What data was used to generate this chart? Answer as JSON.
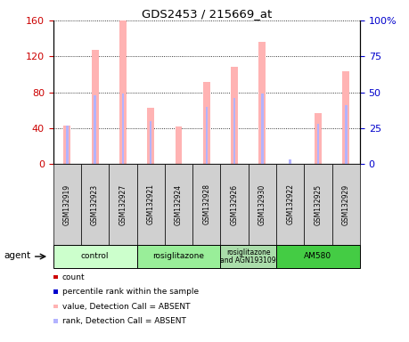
{
  "title": "GDS2453 / 215669_at",
  "samples": [
    "GSM132919",
    "GSM132923",
    "GSM132927",
    "GSM132921",
    "GSM132924",
    "GSM132928",
    "GSM132926",
    "GSM132930",
    "GSM132922",
    "GSM132925",
    "GSM132929"
  ],
  "pink_bars": [
    43,
    127,
    160,
    63,
    42,
    92,
    108,
    136,
    0,
    57,
    103
  ],
  "blue_bars": [
    27,
    48,
    49,
    30,
    0,
    40,
    46,
    49,
    3,
    28,
    41
  ],
  "left_ylim": [
    0,
    160
  ],
  "right_ylim": [
    0,
    100
  ],
  "left_yticks": [
    0,
    40,
    80,
    120,
    160
  ],
  "right_yticks": [
    0,
    25,
    50,
    75,
    100
  ],
  "left_yticklabels": [
    "0",
    "40",
    "80",
    "120",
    "160"
  ],
  "right_yticklabels": [
    "0",
    "25",
    "50",
    "75",
    "100%"
  ],
  "left_tick_color": "#cc0000",
  "right_tick_color": "#0000cc",
  "pink_color": "#ffb3b3",
  "blue_color": "#b3b3ff",
  "pink_bar_width": 0.25,
  "blue_bar_width": 0.08,
  "agent_groups": [
    {
      "label": "control",
      "start": 0,
      "end": 3,
      "color": "#ccffcc"
    },
    {
      "label": "rosiglitazone",
      "start": 3,
      "end": 6,
      "color": "#99ee99"
    },
    {
      "label": "rosiglitazone\nand AGN193109",
      "start": 6,
      "end": 8,
      "color": "#aaddaa"
    },
    {
      "label": "AM580",
      "start": 8,
      "end": 11,
      "color": "#44cc44"
    }
  ],
  "legend_items": [
    {
      "color": "#cc0000",
      "label": "count"
    },
    {
      "color": "#0000cc",
      "label": "percentile rank within the sample"
    },
    {
      "color": "#ffb3b3",
      "label": "value, Detection Call = ABSENT"
    },
    {
      "color": "#b3b3ff",
      "label": "rank, Detection Call = ABSENT"
    }
  ],
  "agent_label": "agent",
  "background_color": "#ffffff"
}
